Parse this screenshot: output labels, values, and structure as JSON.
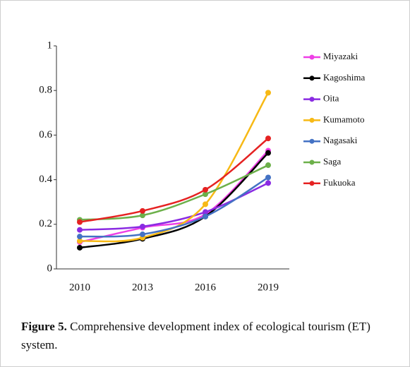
{
  "chart_data": {
    "type": "line",
    "categories": [
      "2010",
      "2013",
      "2016",
      "2019"
    ],
    "series": [
      {
        "name": "Miyazaki",
        "color": "#ee3fe6",
        "values": [
          0.12,
          0.185,
          0.245,
          0.53
        ]
      },
      {
        "name": "Kagoshima",
        "color": "#000000",
        "values": [
          0.095,
          0.135,
          0.235,
          0.52
        ]
      },
      {
        "name": "Oita",
        "color": "#8a2be2",
        "values": [
          0.175,
          0.19,
          0.255,
          0.385
        ]
      },
      {
        "name": "Kumamoto",
        "color": "#f7b915",
        "values": [
          0.125,
          0.14,
          0.29,
          0.79
        ]
      },
      {
        "name": "Nagasaki",
        "color": "#4472c4",
        "values": [
          0.145,
          0.155,
          0.235,
          0.41
        ]
      },
      {
        "name": "Saga",
        "color": "#6cb04a",
        "values": [
          0.22,
          0.24,
          0.335,
          0.465
        ]
      },
      {
        "name": "Fukuoka",
        "color": "#e52222",
        "values": [
          0.21,
          0.26,
          0.355,
          0.585
        ]
      }
    ],
    "ylim": [
      0,
      1
    ],
    "yticks": [
      0,
      0.2,
      0.4,
      0.6,
      0.8,
      1
    ],
    "grid": false,
    "smooth": true,
    "legend": "right"
  },
  "caption": {
    "label": "Figure 5.",
    "text": "Comprehensive development index of ecological tourism (ET) system."
  }
}
